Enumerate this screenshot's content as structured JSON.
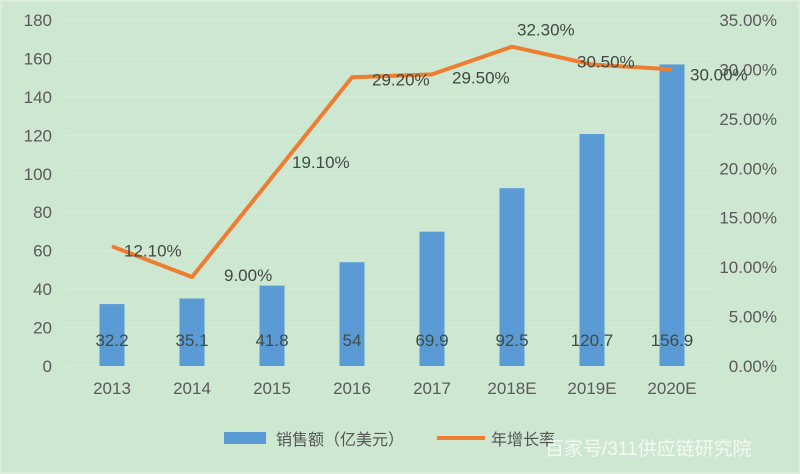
{
  "chart_data": {
    "type": "bar+line",
    "title": "",
    "categories": [
      "2013",
      "2014",
      "2015",
      "2016",
      "2017",
      "2018E",
      "2019E",
      "2020E"
    ],
    "series": [
      {
        "name": "销售额（亿美元）",
        "type": "bar",
        "axis": "left",
        "color": "#5b9bd5",
        "values": [
          32.2,
          35.1,
          41.8,
          54,
          69.9,
          92.5,
          120.7,
          156.9
        ],
        "labels": [
          "32.2",
          "35.1",
          "41.8",
          "54",
          "69.9",
          "92.5",
          "120.7",
          "156.9"
        ]
      },
      {
        "name": "年增长率",
        "type": "line",
        "axis": "right",
        "color": "#ed7d31",
        "values": [
          12.1,
          9.0,
          19.1,
          29.2,
          29.5,
          32.3,
          30.5,
          30.0
        ],
        "labels": [
          "12.10%",
          "9.00%",
          "19.10%",
          "29.20%",
          "29.50%",
          "32.30%",
          "30.50%",
          "30.00%"
        ]
      }
    ],
    "left_axis": {
      "ylim": [
        0,
        180
      ],
      "ticks": [
        "0",
        "20",
        "40",
        "60",
        "80",
        "100",
        "120",
        "140",
        "160",
        "180"
      ]
    },
    "right_axis": {
      "ylim": [
        0,
        35
      ],
      "ticks": [
        "0.00%",
        "5.00%",
        "10.00%",
        "15.00%",
        "20.00%",
        "25.00%",
        "30.00%",
        "35.00%"
      ]
    },
    "xlabel": "",
    "ylabel": "",
    "grid": true,
    "legend_position": "bottom",
    "background": "#cde7d1"
  },
  "legend": {
    "bar_label": "销售额（亿美元）",
    "line_label": "年增长率"
  },
  "watermark": "百家号/311供应链研究院"
}
